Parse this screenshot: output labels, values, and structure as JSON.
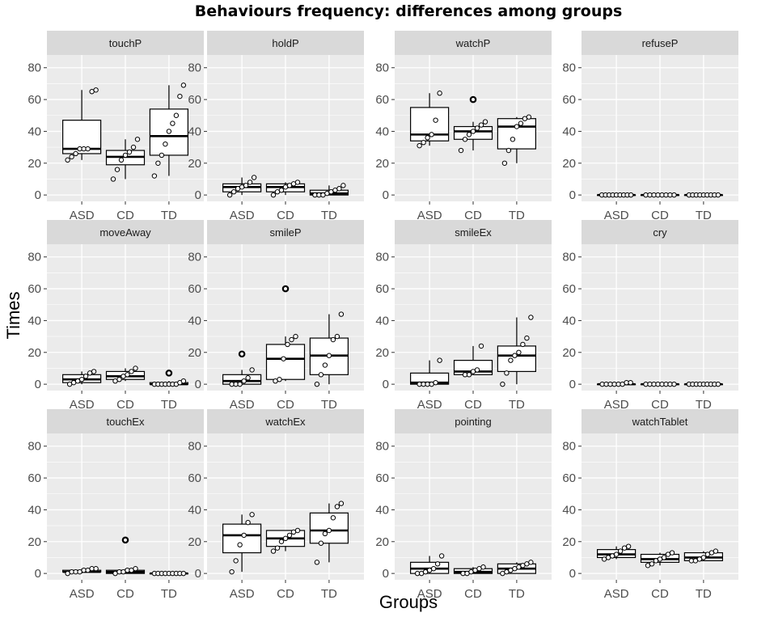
{
  "chart_data": {
    "type": "boxplot",
    "title": "Behaviours frequency: differences among groups",
    "xlabel": "Groups",
    "ylabel": "Times",
    "ylim": [
      -4,
      88
    ],
    "yticks": [
      0,
      20,
      40,
      60,
      80
    ],
    "categories": [
      "ASD",
      "CD",
      "TD"
    ],
    "colors": {
      "panel_bg": "#ebebeb",
      "strip_bg": "#d9d9d9",
      "grid": "#ffffff",
      "box": "#000000",
      "point_fill": "#ffffff"
    },
    "panels": [
      {
        "label": "touchP",
        "groups": [
          {
            "group": "ASD",
            "stats": {
              "min": 22,
              "q1": 26,
              "median": 29,
              "q3": 47,
              "max": 66
            },
            "outliers": [],
            "points": [
              22,
              24,
              26,
              29,
              29,
              29,
              65,
              66
            ]
          },
          {
            "group": "CD",
            "stats": {
              "min": 10,
              "q1": 19,
              "median": 24,
              "q3": 28,
              "max": 35
            },
            "outliers": [],
            "points": [
              10,
              16,
              22,
              25,
              27,
              30,
              35
            ]
          },
          {
            "group": "TD",
            "stats": {
              "min": 12,
              "q1": 25,
              "median": 37,
              "q3": 54,
              "max": 69
            },
            "outliers": [],
            "points": [
              12,
              20,
              25,
              32,
              40,
              45,
              50,
              62,
              69
            ]
          }
        ]
      },
      {
        "label": "holdP",
        "groups": [
          {
            "group": "ASD",
            "stats": {
              "min": 0,
              "q1": 2,
              "median": 5,
              "q3": 7,
              "max": 11
            },
            "outliers": [],
            "points": [
              0,
              2,
              4,
              5,
              6,
              8,
              11
            ]
          },
          {
            "group": "CD",
            "stats": {
              "min": 0,
              "q1": 2,
              "median": 5,
              "q3": 7,
              "max": 8
            },
            "outliers": [],
            "points": [
              0,
              2,
              3,
              5,
              6,
              7,
              8
            ]
          },
          {
            "group": "TD",
            "stats": {
              "min": 0,
              "q1": 0,
              "median": 1,
              "q3": 3,
              "max": 6
            },
            "outliers": [],
            "points": [
              0,
              0,
              0,
              1,
              2,
              3,
              4,
              6
            ]
          }
        ]
      },
      {
        "label": "watchP",
        "groups": [
          {
            "group": "ASD",
            "stats": {
              "min": 31,
              "q1": 34,
              "median": 38,
              "q3": 55,
              "max": 64
            },
            "outliers": [],
            "points": [
              31,
              33,
              36,
              38,
              47,
              64
            ]
          },
          {
            "group": "CD",
            "stats": {
              "min": 28,
              "q1": 35,
              "median": 40,
              "q3": 43,
              "max": 46
            },
            "outliers": [
              60
            ],
            "points": [
              28,
              35,
              38,
              40,
              42,
              44,
              46
            ]
          },
          {
            "group": "TD",
            "stats": {
              "min": 20,
              "q1": 29,
              "median": 43,
              "q3": 48,
              "max": 49
            },
            "outliers": [],
            "points": [
              20,
              28,
              35,
              43,
              45,
              48,
              49
            ]
          }
        ]
      },
      {
        "label": "refuseP",
        "groups": [
          {
            "group": "ASD",
            "stats": {
              "min": 0,
              "q1": 0,
              "median": 0,
              "q3": 0,
              "max": 0
            },
            "outliers": [],
            "points": [
              0,
              0,
              0,
              0,
              0,
              0,
              0,
              0,
              0
            ]
          },
          {
            "group": "CD",
            "stats": {
              "min": 0,
              "q1": 0,
              "median": 0,
              "q3": 0,
              "max": 0
            },
            "outliers": [],
            "points": [
              0,
              0,
              0,
              0,
              0,
              0,
              0,
              0
            ]
          },
          {
            "group": "TD",
            "stats": {
              "min": 0,
              "q1": 0,
              "median": 0,
              "q3": 0,
              "max": 0
            },
            "outliers": [],
            "points": [
              0,
              0,
              0,
              0,
              0,
              0,
              0,
              0,
              0
            ]
          }
        ]
      },
      {
        "label": "moveAway",
        "groups": [
          {
            "group": "ASD",
            "stats": {
              "min": 0,
              "q1": 1,
              "median": 3,
              "q3": 6,
              "max": 8
            },
            "outliers": [],
            "points": [
              0,
              1,
              2,
              3,
              5,
              7,
              8
            ]
          },
          {
            "group": "CD",
            "stats": {
              "min": 2,
              "q1": 3,
              "median": 5,
              "q3": 8,
              "max": 10
            },
            "outliers": [],
            "points": [
              2,
              3,
              5,
              6,
              8,
              10
            ]
          },
          {
            "group": "TD",
            "stats": {
              "min": 0,
              "q1": 0,
              "median": 0,
              "q3": 1,
              "max": 2
            },
            "outliers": [
              7
            ],
            "points": [
              0,
              0,
              0,
              0,
              0,
              0,
              0,
              1,
              2
            ]
          }
        ]
      },
      {
        "label": "smileP",
        "groups": [
          {
            "group": "ASD",
            "stats": {
              "min": 0,
              "q1": 0,
              "median": 2,
              "q3": 6,
              "max": 9
            },
            "outliers": [
              19
            ],
            "points": [
              0,
              0,
              0,
              2,
              4,
              9
            ]
          },
          {
            "group": "CD",
            "stats": {
              "min": 2,
              "q1": 3,
              "median": 16,
              "q3": 25,
              "max": 30
            },
            "outliers": [
              60
            ],
            "points": [
              2,
              3,
              16,
              25,
              28,
              30
            ]
          },
          {
            "group": "TD",
            "stats": {
              "min": 0,
              "q1": 6,
              "median": 18,
              "q3": 29,
              "max": 44
            },
            "outliers": [],
            "points": [
              0,
              6,
              12,
              18,
              28,
              30,
              44
            ]
          }
        ]
      },
      {
        "label": "smileEx",
        "groups": [
          {
            "group": "ASD",
            "stats": {
              "min": 0,
              "q1": 0,
              "median": 1,
              "q3": 7,
              "max": 15
            },
            "outliers": [],
            "points": [
              0,
              0,
              0,
              0,
              1,
              15
            ]
          },
          {
            "group": "CD",
            "stats": {
              "min": 6,
              "q1": 6,
              "median": 8,
              "q3": 15,
              "max": 24
            },
            "outliers": [],
            "points": [
              6,
              6,
              8,
              9,
              24
            ]
          },
          {
            "group": "TD",
            "stats": {
              "min": 0,
              "q1": 8,
              "median": 18,
              "q3": 24,
              "max": 42
            },
            "outliers": [],
            "points": [
              0,
              7,
              15,
              18,
              20,
              25,
              29,
              42
            ]
          }
        ]
      },
      {
        "label": "cry",
        "groups": [
          {
            "group": "ASD",
            "stats": {
              "min": 0,
              "q1": 0,
              "median": 0,
              "q3": 0,
              "max": 1
            },
            "outliers": [],
            "points": [
              0,
              0,
              0,
              0,
              0,
              0,
              1,
              1
            ]
          },
          {
            "group": "CD",
            "stats": {
              "min": 0,
              "q1": 0,
              "median": 0,
              "q3": 0,
              "max": 0
            },
            "outliers": [],
            "points": [
              0,
              0,
              0,
              0,
              0,
              0,
              0,
              0
            ]
          },
          {
            "group": "TD",
            "stats": {
              "min": 0,
              "q1": 0,
              "median": 0,
              "q3": 0,
              "max": 0
            },
            "outliers": [],
            "points": [
              0,
              0,
              0,
              0,
              0,
              0,
              0,
              0,
              0
            ]
          }
        ]
      },
      {
        "label": "touchEx",
        "groups": [
          {
            "group": "ASD",
            "stats": {
              "min": 0,
              "q1": 1,
              "median": 1,
              "q3": 2,
              "max": 3
            },
            "outliers": [],
            "points": [
              0,
              1,
              1,
              1,
              2,
              2,
              3,
              3
            ]
          },
          {
            "group": "CD",
            "stats": {
              "min": 0,
              "q1": 0,
              "median": 1,
              "q3": 2,
              "max": 3
            },
            "outliers": [
              21
            ],
            "points": [
              0,
              1,
              1,
              2,
              2,
              3
            ]
          },
          {
            "group": "TD",
            "stats": {
              "min": 0,
              "q1": 0,
              "median": 0,
              "q3": 0,
              "max": 0
            },
            "outliers": [],
            "points": [
              0,
              0,
              0,
              0,
              0,
              0,
              0,
              0,
              0
            ]
          }
        ]
      },
      {
        "label": "watchEx",
        "groups": [
          {
            "group": "ASD",
            "stats": {
              "min": 1,
              "q1": 13,
              "median": 24,
              "q3": 31,
              "max": 37
            },
            "outliers": [],
            "points": [
              1,
              8,
              18,
              24,
              32,
              37
            ]
          },
          {
            "group": "CD",
            "stats": {
              "min": 14,
              "q1": 17,
              "median": 22,
              "q3": 27,
              "max": 27
            },
            "outliers": [],
            "points": [
              14,
              16,
              20,
              22,
              24,
              26,
              27
            ]
          },
          {
            "group": "TD",
            "stats": {
              "min": 7,
              "q1": 19,
              "median": 27,
              "q3": 38,
              "max": 44
            },
            "outliers": [],
            "points": [
              7,
              19,
              25,
              27,
              35,
              42,
              44
            ]
          }
        ]
      },
      {
        "label": "pointing",
        "groups": [
          {
            "group": "ASD",
            "stats": {
              "min": 0,
              "q1": 0,
              "median": 3,
              "q3": 7,
              "max": 11
            },
            "outliers": [],
            "points": [
              0,
              0,
              1,
              2,
              3,
              6,
              11
            ]
          },
          {
            "group": "CD",
            "stats": {
              "min": 0,
              "q1": 0,
              "median": 1,
              "q3": 3,
              "max": 4
            },
            "outliers": [],
            "points": [
              0,
              0,
              1,
              2,
              3,
              4
            ]
          },
          {
            "group": "TD",
            "stats": {
              "min": 0,
              "q1": 0,
              "median": 3,
              "q3": 6,
              "max": 7
            },
            "outliers": [],
            "points": [
              0,
              1,
              2,
              3,
              4,
              5,
              6,
              7
            ]
          }
        ]
      },
      {
        "label": "watchTablet",
        "groups": [
          {
            "group": "ASD",
            "stats": {
              "min": 9,
              "q1": 10,
              "median": 12,
              "q3": 15,
              "max": 17
            },
            "outliers": [],
            "points": [
              9,
              10,
              11,
              12,
              14,
              16,
              17
            ]
          },
          {
            "group": "CD",
            "stats": {
              "min": 5,
              "q1": 7,
              "median": 9,
              "q3": 12,
              "max": 13
            },
            "outliers": [],
            "points": [
              5,
              6,
              8,
              9,
              10,
              12,
              13
            ]
          },
          {
            "group": "TD",
            "stats": {
              "min": 8,
              "q1": 8,
              "median": 10,
              "q3": 13,
              "max": 14
            },
            "outliers": [],
            "points": [
              8,
              8,
              9,
              10,
              12,
              13,
              14
            ]
          }
        ]
      }
    ]
  }
}
